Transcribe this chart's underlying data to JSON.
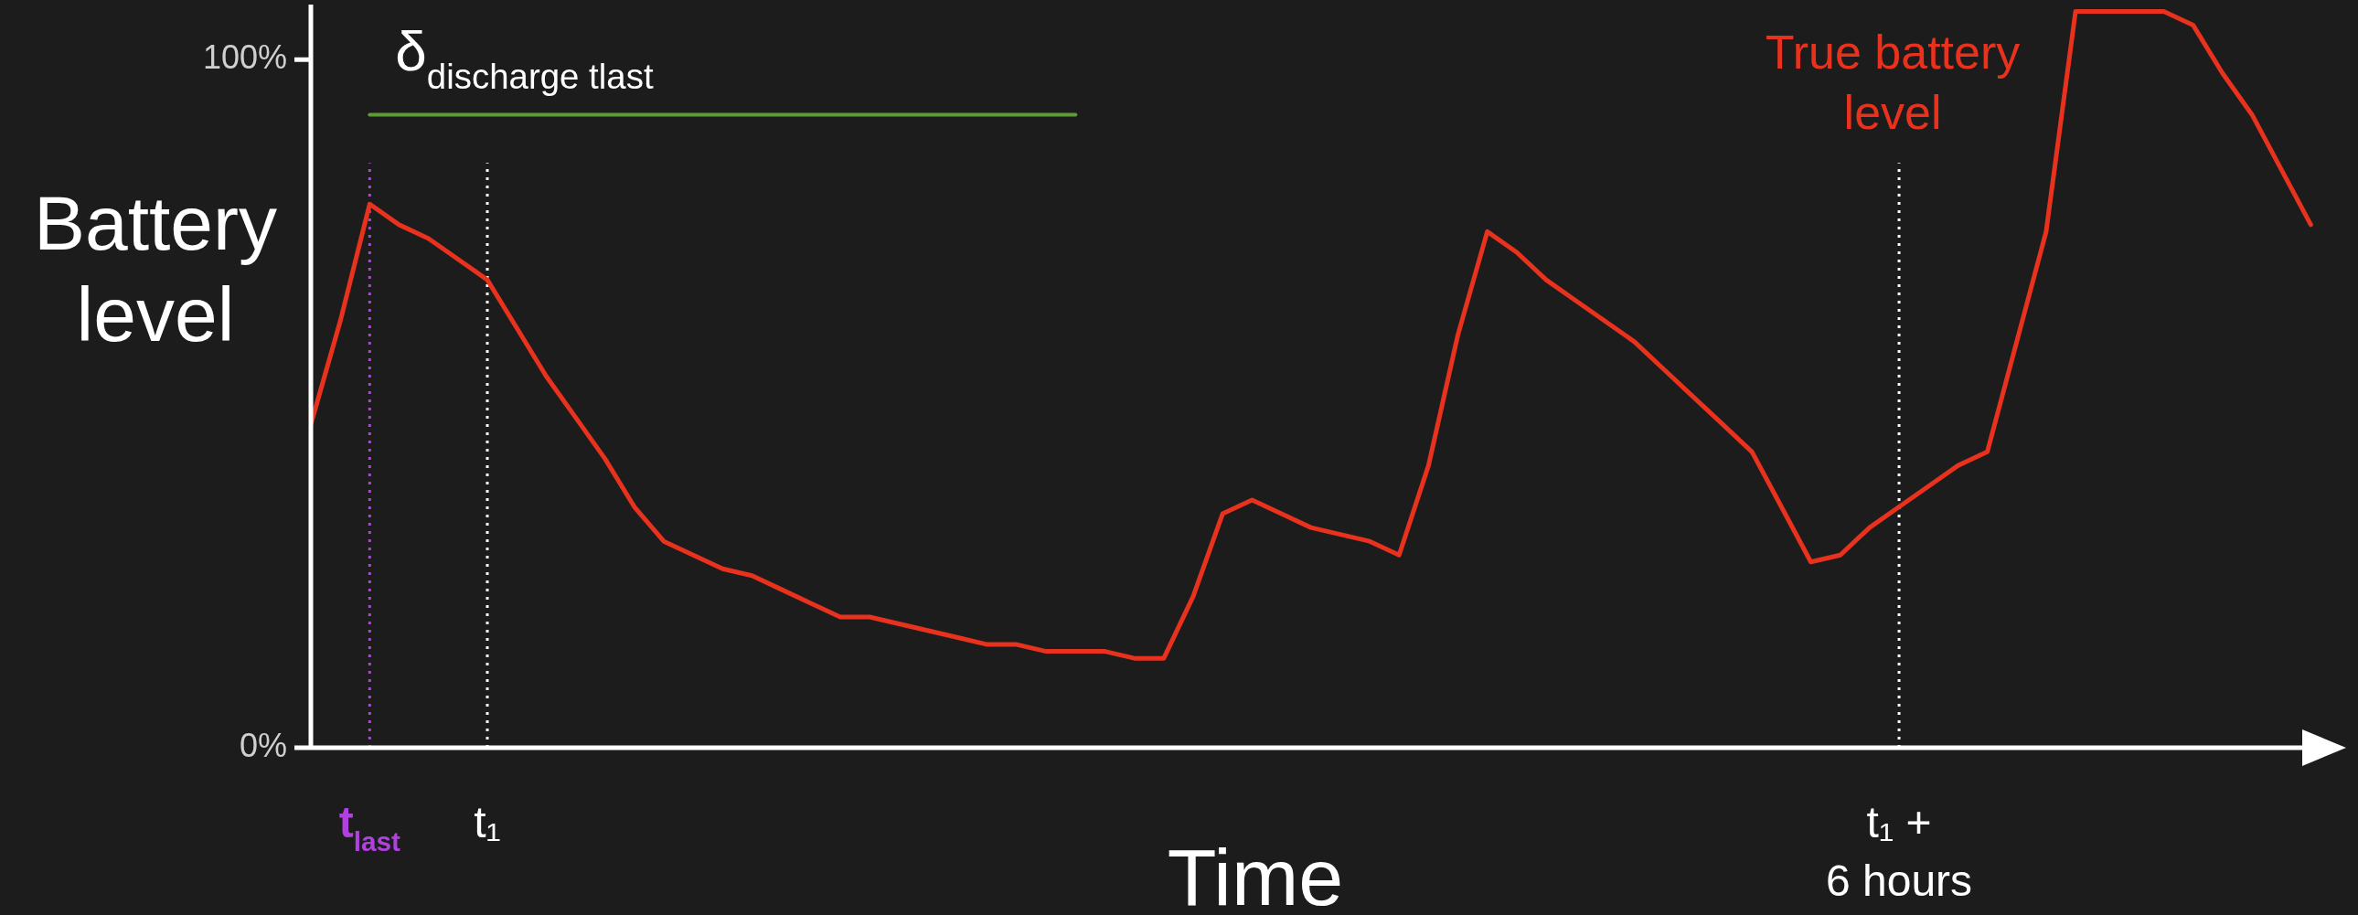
{
  "chart_data": {
    "type": "line",
    "ylabel": "Battery\nlevel",
    "xlabel": "Time",
    "categories": [
      null,
      null,
      "t$_{last}$",
      null,
      null,
      null,
      "t₁",
      null,
      null,
      null,
      null,
      null,
      null,
      null,
      null,
      null,
      null,
      null,
      null,
      null,
      null,
      null,
      null,
      null,
      null,
      null,
      null,
      null,
      null,
      null,
      null,
      null,
      null,
      null,
      null,
      null,
      null,
      null,
      null,
      null,
      null,
      null,
      null,
      null,
      null,
      null,
      null,
      null,
      null,
      null,
      null,
      null,
      null,
      null,
      "t₁ +\n6 hours",
      null,
      null,
      null,
      null,
      null,
      null,
      null,
      null,
      null,
      null,
      null,
      null,
      null,
      null
    ],
    "ylim": [
      0,
      108
    ],
    "yticks": [
      {
        "value": 0,
        "label": "0%"
      },
      {
        "value": 100,
        "label": "100%"
      }
    ],
    "series": [
      {
        "name": "True battery level",
        "color": "#e8321e",
        "values": [
          47,
          62,
          79,
          76,
          74,
          71,
          68,
          61,
          54,
          48,
          42,
          35,
          30,
          28,
          26,
          25,
          23,
          21,
          19,
          19,
          18,
          17,
          16,
          15,
          15,
          14,
          14,
          14,
          13,
          13,
          22,
          34,
          36,
          34,
          32,
          31,
          30,
          28,
          41,
          60,
          75,
          72,
          68,
          65,
          62,
          59,
          55,
          51,
          47,
          43,
          35,
          27,
          28,
          32,
          35,
          38,
          41,
          43,
          59,
          75,
          107,
          107,
          107,
          107,
          105,
          98,
          92,
          84,
          76
        ]
      },
      {
        "name": "δ$_{discharge tlast}$",
        "color": "#5e9a3a",
        "values": [
          null,
          null,
          92,
          92,
          92,
          92,
          92,
          92,
          92,
          92,
          92,
          92,
          92,
          92,
          92,
          92,
          92,
          92,
          92,
          92,
          92,
          92,
          92,
          92,
          92,
          92,
          92,
          null,
          null,
          null,
          null,
          null,
          null,
          null,
          null,
          null,
          null,
          null,
          null,
          null,
          null,
          null,
          null,
          null,
          null,
          null,
          null,
          null,
          null,
          null,
          null,
          null,
          null,
          null,
          null,
          null,
          null,
          null,
          null,
          null,
          null,
          null,
          null,
          null,
          null,
          null,
          null,
          null,
          null
        ]
      }
    ],
    "ref_lines": [
      {
        "axis": "x",
        "value": "t$_{last}$",
        "color": "#b040e0",
        "line_style": "dotted"
      },
      {
        "axis": "x",
        "value": "t₁",
        "color": "#ffffff",
        "line_style": "dotted"
      },
      {
        "axis": "x",
        "value": "t₁ +\n6 hours",
        "color": "#ffffff",
        "line_style": "dotted"
      }
    ],
    "grid": false,
    "legend": false,
    "marker": "none",
    "line_style": "solid"
  }
}
